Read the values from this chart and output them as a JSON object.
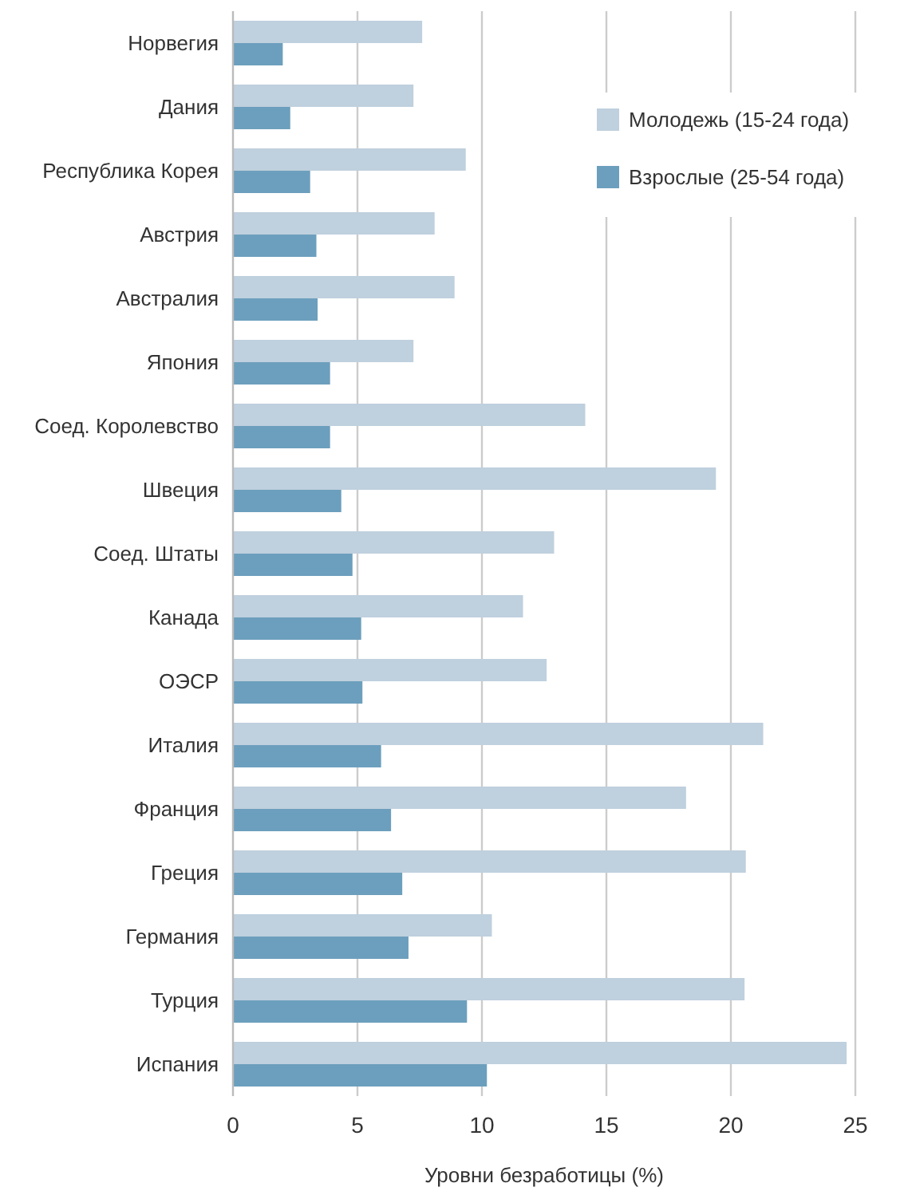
{
  "chart_data": {
    "type": "bar",
    "orientation": "horizontal",
    "xlabel": "Уровни безработицы (%)",
    "categories": [
      "Норвегия",
      "Дания",
      "Республика Корея",
      "Австрия",
      "Австралия",
      "Япония",
      "Соед. Королевство",
      "Швеция",
      "Соед. Штаты",
      "Канада",
      "ОЭСР",
      "Италия",
      "Франция",
      "Греция",
      "Германия",
      "Турция",
      "Испания"
    ],
    "series": [
      {
        "name": "Молодежь (15-24 года)",
        "color": "#bfd0de",
        "values": [
          7.6,
          7.25,
          9.35,
          8.1,
          8.9,
          7.25,
          14.15,
          19.4,
          12.9,
          11.65,
          12.6,
          21.3,
          18.2,
          20.6,
          10.4,
          20.55,
          24.65
        ]
      },
      {
        "name": "Взрослые (25-54 года)",
        "color": "#6c9fbd",
        "values": [
          2.0,
          2.3,
          3.1,
          3.35,
          3.4,
          3.9,
          3.9,
          4.35,
          4.8,
          5.15,
          5.2,
          5.95,
          6.35,
          6.8,
          7.05,
          9.4,
          10.2
        ]
      }
    ],
    "xlim": [
      0,
      25
    ],
    "xticks": [
      0,
      5,
      10,
      15,
      20,
      25
    ],
    "grid": "x",
    "legend": "top right"
  }
}
